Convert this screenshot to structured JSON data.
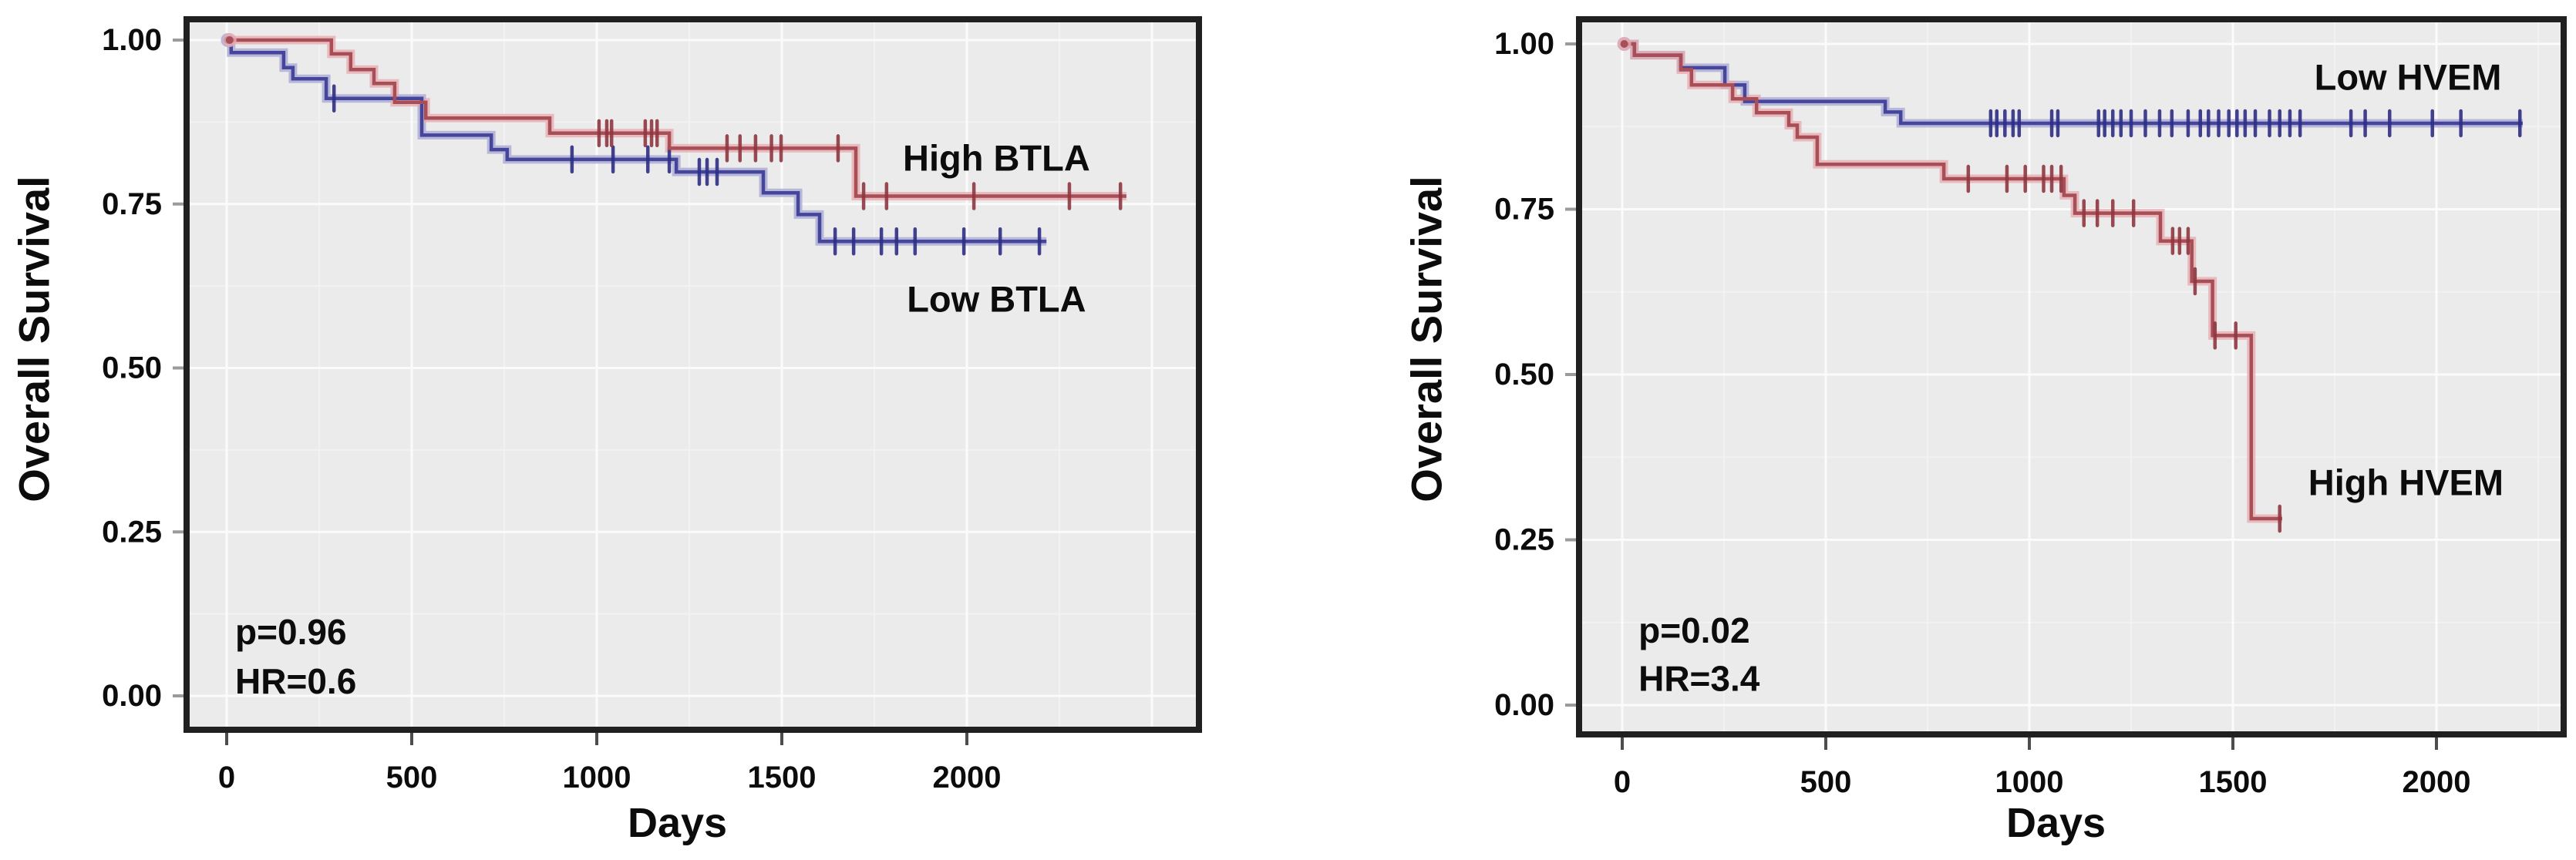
{
  "figure": {
    "background": "#ffffff",
    "plot_background": "#ebebeb",
    "frame_color": "#202020",
    "grid_major_color": "#fbfbfb",
    "grid_minor_color": "#f2f2f2",
    "x_tick_mark_color": "#4d4d4d",
    "y_tick_mark_color": "#9b9b9b",
    "text_color": "#0c0c0c"
  },
  "chart_data": {
    "type": "line",
    "subtype": "kaplan-meier-step-curves",
    "panels": [
      {
        "id": "btla",
        "xlabel": "Days",
        "ylabel": "Overall Survival",
        "x_tick_values": [
          0,
          500,
          1000,
          1500,
          2000
        ],
        "x_tick_labels": [
          "0",
          "500",
          "1000",
          "1500",
          "2000"
        ],
        "y_tick_values": [
          1.0,
          0.75,
          0.5,
          0.25,
          0.0
        ],
        "y_tick_labels": [
          "1.00",
          "0.75",
          "0.50",
          "0.25",
          "0.00"
        ],
        "xlim": [
          -108,
          2630
        ],
        "ylim": [
          -0.05,
          1.03
        ],
        "grid": true,
        "legend_position": "labels-on-plot",
        "annotations": [
          {
            "text": "p=0.96",
            "day": 23,
            "survival": 0.0976
          },
          {
            "text": "HR=0.6",
            "day": 23,
            "survival": 0.0226
          }
        ],
        "series": [
          {
            "name": "Low BTLA",
            "color_core": "#45459c",
            "color_halo": "#a8a8d4",
            "color_censor": "#2e2e84",
            "label": {
              "text": "Low BTLA",
              "day": 2080,
              "survival": 0.605
            },
            "steps": [
              [
                3,
                1.0
              ],
              [
                12,
                0.981
              ],
              [
                154,
                0.958
              ],
              [
                179,
                0.941
              ],
              [
                269,
                0.911
              ],
              [
                527,
                0.855
              ],
              [
                715,
                0.833
              ],
              [
                758,
                0.818
              ],
              [
                1215,
                0.799
              ],
              [
                1450,
                0.767
              ],
              [
                1544,
                0.734
              ],
              [
                1602,
                0.693
              ],
              [
                2215,
                0.693
              ]
            ],
            "censor_days": [
              290,
              933,
              1044,
              1138,
              1196,
              1277,
              1298,
              1325,
              1644,
              1694,
              1769,
              1810,
              1860,
              1992,
              2090,
              2196
            ]
          },
          {
            "name": "High BTLA",
            "color_core": "#a84e56",
            "color_halo": "#e7abaf",
            "color_censor": "#8e3640",
            "label": {
              "text": "High BTLA",
              "day": 2080,
              "survival": 0.82
            },
            "steps": [
              [
                8,
                1.0
              ],
              [
                283,
                0.979
              ],
              [
                335,
                0.955
              ],
              [
                398,
                0.934
              ],
              [
                454,
                0.905
              ],
              [
                538,
                0.881
              ],
              [
                873,
                0.858
              ],
              [
                1196,
                0.835
              ],
              [
                1700,
                0.762
              ],
              [
                2431,
                0.762
              ]
            ],
            "censor_days": [
              1006,
              1027,
              1040,
              1131,
              1148,
              1163,
              1352,
              1387,
              1429,
              1472,
              1498,
              1652,
              1721,
              1783,
              2019,
              2277,
              2415
            ]
          }
        ]
      },
      {
        "id": "hvem",
        "xlabel": "Days",
        "ylabel": "Overall Survival",
        "x_tick_values": [
          0,
          500,
          1000,
          1500,
          2000
        ],
        "x_tick_labels": [
          "0",
          "500",
          "1000",
          "1500",
          "2000"
        ],
        "y_tick_values": [
          1.0,
          0.75,
          0.5,
          0.25,
          0.0
        ],
        "y_tick_labels": [
          "1.00",
          "0.75",
          "0.50",
          "0.25",
          "0.00"
        ],
        "xlim": [
          -106,
          2313
        ],
        "ylim": [
          -0.044,
          1.037
        ],
        "grid": true,
        "legend_position": "labels-on-plot",
        "annotations": [
          {
            "text": "p=0.02",
            "day": 40,
            "survival": 0.113
          },
          {
            "text": "HR=3.4",
            "day": 40,
            "survival": 0.04
          }
        ],
        "series": [
          {
            "name": "Low HVEM",
            "color_core": "#45459c",
            "color_halo": "#a8a8d4",
            "color_censor": "#2e2e84",
            "label": {
              "text": "Low HVEM",
              "day": 1930,
              "survival": 0.95
            },
            "steps": [
              [
                5,
                1.0
              ],
              [
                30,
                0.983
              ],
              [
                144,
                0.964
              ],
              [
                252,
                0.938
              ],
              [
                301,
                0.913
              ],
              [
                646,
                0.897
              ],
              [
                684,
                0.88
              ],
              [
                2212,
                0.88
              ]
            ],
            "censor_days": [
              905,
              920,
              940,
              960,
              975,
              1055,
              1070,
              1170,
              1185,
              1205,
              1225,
              1250,
              1285,
              1320,
              1350,
              1390,
              1420,
              1440,
              1465,
              1490,
              1510,
              1530,
              1555,
              1590,
              1615,
              1640,
              1665,
              1790,
              1825,
              1885,
              1990,
              2060,
              2205
            ]
          },
          {
            "name": "High HVEM",
            "color_core": "#a84e56",
            "color_halo": "#e7abaf",
            "color_censor": "#8e3640",
            "label": {
              "text": "High HVEM",
              "day": 1925,
              "survival": 0.337
            },
            "steps": [
              [
                5,
                1.0
              ],
              [
                30,
                0.983
              ],
              [
                144,
                0.961
              ],
              [
                170,
                0.938
              ],
              [
                271,
                0.917
              ],
              [
                330,
                0.896
              ],
              [
                409,
                0.877
              ],
              [
                430,
                0.859
              ],
              [
                479,
                0.818
              ],
              [
                790,
                0.796
              ],
              [
                1085,
                0.771
              ],
              [
                1112,
                0.744
              ],
              [
                1322,
                0.702
              ],
              [
                1399,
                0.641
              ],
              [
                1450,
                0.559
              ],
              [
                1545,
                0.282
              ],
              [
                1621,
                0.282
              ]
            ],
            "censor_days": [
              850,
              945,
              990,
              1035,
              1055,
              1078,
              1134,
              1167,
              1205,
              1256,
              1352,
              1369,
              1390,
              1407,
              1456,
              1507,
              1615
            ]
          }
        ]
      }
    ]
  }
}
